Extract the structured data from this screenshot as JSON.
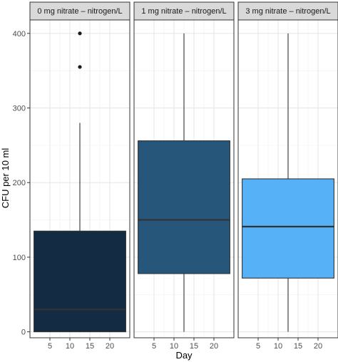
{
  "chart_data": {
    "type": "box",
    "ylabel": "CFU per 10 ml",
    "xlabel": "Day",
    "ylim": [
      -8,
      418
    ],
    "xlim": [
      0,
      25
    ],
    "y_ticks": [
      0,
      100,
      200,
      300,
      400
    ],
    "x_ticks": [
      5,
      10,
      15,
      20
    ],
    "grid": true,
    "facets": [
      {
        "label": "0 mg nitrate – nitrogen/L",
        "color": "#132B43",
        "box": {
          "x_min": 1,
          "x_max": 24,
          "q1": 0,
          "median": 30,
          "q3": 135,
          "whisker_low": 0,
          "whisker_high": 280,
          "whisker_x": 12.5
        },
        "outliers": [
          {
            "x": 12.5,
            "y": 355
          },
          {
            "x": 12.5,
            "y": 400
          }
        ]
      },
      {
        "label": "1 mg nitrate – nitrogen/L",
        "color": "#27567B",
        "box": {
          "x_min": 1,
          "x_max": 24,
          "q1": 78,
          "median": 150,
          "q3": 256,
          "whisker_low": 0,
          "whisker_high": 400,
          "whisker_x": 12.5
        },
        "outliers": []
      },
      {
        "label": "3 mg nitrate – nitrogen/L",
        "color": "#56B1F7",
        "box": {
          "x_min": 1,
          "x_max": 24,
          "q1": 72,
          "median": 141,
          "q3": 205,
          "whisker_low": 0,
          "whisker_high": 400,
          "whisker_x": 12.5
        },
        "outliers": []
      }
    ]
  }
}
